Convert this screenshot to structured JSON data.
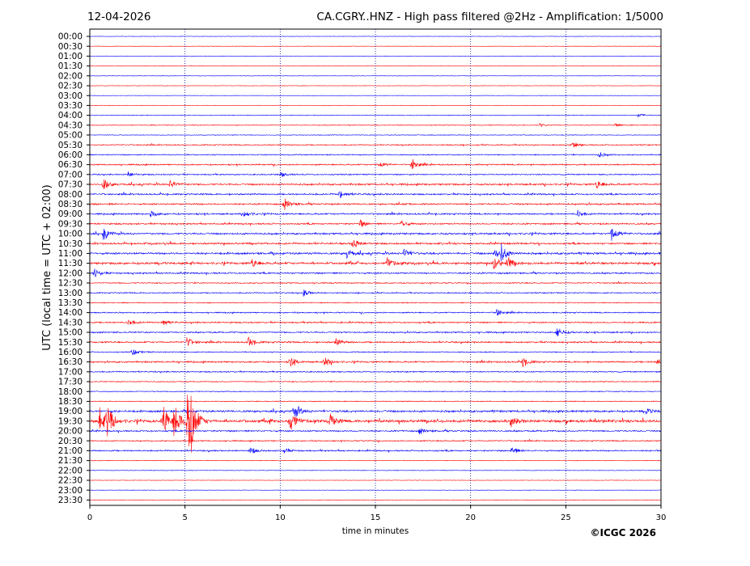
{
  "header": {
    "date": "12-04-2026",
    "title": "CA.CGRY..HNZ - High pass filtered @2Hz - Amplification: 1/5000"
  },
  "copyright": "©ICGC 2026",
  "colors": {
    "even_trace": "#0000ff",
    "odd_trace": "#ff0000",
    "grid": "#00008b"
  },
  "chart_data": {
    "type": "line",
    "subtype": "helicorder",
    "xlabel": "time in minutes",
    "ylabel": "UTC (local time = UTC + 02:00)",
    "xlim": [
      0,
      30
    ],
    "xticks": [
      "0",
      "5",
      "10",
      "15",
      "20",
      "25",
      "30"
    ],
    "grid": "vertical-dotted",
    "rows": [
      "00:00",
      "00:30",
      "01:00",
      "01:30",
      "02:00",
      "02:30",
      "03:00",
      "03:30",
      "04:00",
      "04:30",
      "05:00",
      "05:30",
      "06:00",
      "06:30",
      "07:00",
      "07:30",
      "08:00",
      "08:30",
      "09:00",
      "09:30",
      "10:00",
      "10:30",
      "11:00",
      "11:30",
      "12:00",
      "12:30",
      "13:00",
      "13:30",
      "14:00",
      "14:30",
      "15:00",
      "15:30",
      "16:00",
      "16:30",
      "17:00",
      "17:30",
      "18:00",
      "18:30",
      "19:00",
      "19:30",
      "20:00",
      "20:30",
      "21:00",
      "21:30",
      "22:00",
      "22:30",
      "23:00",
      "23:30"
    ],
    "row_colors": "alternating blue (even rows) / red (odd rows)",
    "activity": [
      0,
      0,
      0,
      0,
      0,
      0,
      0,
      0,
      0.1,
      0.15,
      0.1,
      0.3,
      0.3,
      0.4,
      0.35,
      0.6,
      0.5,
      0.55,
      0.5,
      0.5,
      0.6,
      0.6,
      0.7,
      0.75,
      0.5,
      0.3,
      0.3,
      0.2,
      0.35,
      0.45,
      0.45,
      0.5,
      0.3,
      0.5,
      0.35,
      0.25,
      0.2,
      0.2,
      0.7,
      1.0,
      0.5,
      0.35,
      0.45,
      0.1,
      0.05,
      0,
      0,
      0
    ],
    "events": [
      {
        "row": 8,
        "t": 28.8,
        "amp": 0.2
      },
      {
        "row": 9,
        "t": 23.6,
        "amp": 0.2
      },
      {
        "row": 9,
        "t": 27.6,
        "amp": 0.2
      },
      {
        "row": 11,
        "t": 25.3,
        "amp": 0.4
      },
      {
        "row": 12,
        "t": 26.7,
        "amp": 0.35
      },
      {
        "row": 13,
        "t": 15.2,
        "amp": 0.35
      },
      {
        "row": 13,
        "t": 16.9,
        "amp": 0.7
      },
      {
        "row": 14,
        "t": 2.0,
        "amp": 0.3
      },
      {
        "row": 14,
        "t": 10.0,
        "amp": 0.3
      },
      {
        "row": 15,
        "t": 0.7,
        "amp": 0.6
      },
      {
        "row": 15,
        "t": 4.2,
        "amp": 0.5
      },
      {
        "row": 15,
        "t": 26.6,
        "amp": 0.5
      },
      {
        "row": 16,
        "t": 13.1,
        "amp": 0.5
      },
      {
        "row": 17,
        "t": 10.2,
        "amp": 0.7
      },
      {
        "row": 18,
        "t": 3.2,
        "amp": 0.4
      },
      {
        "row": 18,
        "t": 8.1,
        "amp": 0.4
      },
      {
        "row": 18,
        "t": 25.6,
        "amp": 0.4
      },
      {
        "row": 19,
        "t": 14.2,
        "amp": 0.4
      },
      {
        "row": 19,
        "t": 16.3,
        "amp": 0.45
      },
      {
        "row": 20,
        "t": 0.7,
        "amp": 0.7
      },
      {
        "row": 20,
        "t": 27.4,
        "amp": 0.9
      },
      {
        "row": 21,
        "t": 13.8,
        "amp": 0.6
      },
      {
        "row": 22,
        "t": 13.5,
        "amp": 0.5
      },
      {
        "row": 22,
        "t": 16.5,
        "amp": 0.5
      },
      {
        "row": 22,
        "t": 21.2,
        "amp": 0.6
      },
      {
        "row": 22,
        "t": 21.6,
        "amp": 0.9
      },
      {
        "row": 23,
        "t": 8.5,
        "amp": 0.5
      },
      {
        "row": 23,
        "t": 15.6,
        "amp": 0.6
      },
      {
        "row": 23,
        "t": 21.2,
        "amp": 0.8
      },
      {
        "row": 23,
        "t": 21.9,
        "amp": 0.7
      },
      {
        "row": 24,
        "t": 0.2,
        "amp": 0.5
      },
      {
        "row": 26,
        "t": 11.2,
        "amp": 0.4
      },
      {
        "row": 28,
        "t": 21.3,
        "amp": 0.5
      },
      {
        "row": 29,
        "t": 2.0,
        "amp": 0.4
      },
      {
        "row": 29,
        "t": 3.8,
        "amp": 0.4
      },
      {
        "row": 30,
        "t": 24.5,
        "amp": 0.7
      },
      {
        "row": 31,
        "t": 5.1,
        "amp": 0.5
      },
      {
        "row": 31,
        "t": 8.3,
        "amp": 0.6
      },
      {
        "row": 31,
        "t": 12.9,
        "amp": 0.4
      },
      {
        "row": 32,
        "t": 2.2,
        "amp": 0.4
      },
      {
        "row": 33,
        "t": 10.5,
        "amp": 0.6
      },
      {
        "row": 33,
        "t": 12.3,
        "amp": 0.6
      },
      {
        "row": 33,
        "t": 22.7,
        "amp": 0.6
      },
      {
        "row": 33,
        "t": 29.8,
        "amp": 0.5
      },
      {
        "row": 38,
        "t": 10.7,
        "amp": 1.0
      },
      {
        "row": 38,
        "t": 29.2,
        "amp": 0.3
      },
      {
        "row": 39,
        "t": 0.5,
        "amp": 1.5
      },
      {
        "row": 39,
        "t": 0.9,
        "amp": 1.8
      },
      {
        "row": 39,
        "t": 3.8,
        "amp": 2.0
      },
      {
        "row": 39,
        "t": 4.4,
        "amp": 2.2
      },
      {
        "row": 39,
        "t": 5.1,
        "amp": 3.0
      },
      {
        "row": 39,
        "t": 5.2,
        "amp": 3.6
      },
      {
        "row": 39,
        "t": 10.5,
        "amp": 1.4
      },
      {
        "row": 39,
        "t": 12.6,
        "amp": 0.8
      },
      {
        "row": 39,
        "t": 22.1,
        "amp": 0.6
      },
      {
        "row": 40,
        "t": 17.3,
        "amp": 0.4
      },
      {
        "row": 42,
        "t": 8.4,
        "amp": 0.4
      },
      {
        "row": 42,
        "t": 10.2,
        "amp": 0.3
      },
      {
        "row": 42,
        "t": 22.1,
        "amp": 0.6
      }
    ]
  }
}
